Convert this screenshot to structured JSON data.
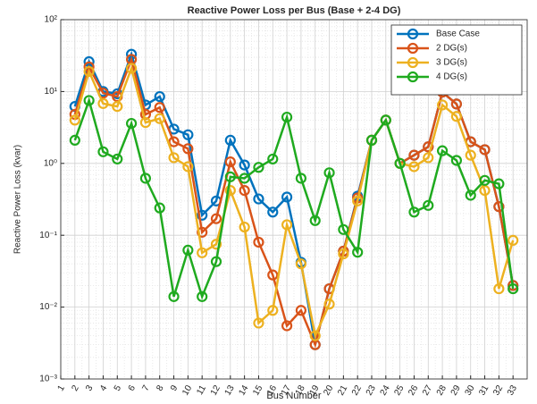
{
  "chart_data": {
    "type": "line",
    "title": "Reactive Power Loss per Bus (Base + 2-4 DG)",
    "xlabel": "Bus Number",
    "ylabel": "Reactive Power Loss (kvar)",
    "x": [
      2,
      3,
      4,
      5,
      6,
      7,
      8,
      9,
      10,
      11,
      12,
      13,
      14,
      15,
      16,
      17,
      18,
      19,
      20,
      21,
      22,
      23,
      24,
      25,
      26,
      27,
      28,
      29,
      30,
      31,
      32,
      33
    ],
    "xlim": [
      1,
      34
    ],
    "xticks": [
      1,
      2,
      3,
      4,
      5,
      6,
      7,
      8,
      9,
      10,
      11,
      12,
      13,
      14,
      15,
      16,
      17,
      18,
      19,
      20,
      21,
      22,
      23,
      24,
      25,
      26,
      27,
      28,
      29,
      30,
      31,
      32,
      33
    ],
    "ylim": [
      0.001,
      100
    ],
    "yticks": [
      {
        "value": 0.001,
        "label": "10⁻³"
      },
      {
        "value": 0.01,
        "label": "10⁻²"
      },
      {
        "value": 0.1,
        "label": "10⁻¹"
      },
      {
        "value": 1,
        "label": "10⁰"
      },
      {
        "value": 10,
        "label": "10¹"
      },
      {
        "value": 100,
        "label": "10²"
      }
    ],
    "log_y": true,
    "grid": true,
    "minor_grid": true,
    "legend": "top-right",
    "series": [
      {
        "name": "Base Case",
        "color": "#0072BD",
        "values": [
          6.2,
          26,
          10,
          9.3,
          33,
          6.5,
          8.5,
          3.0,
          2.5,
          0.19,
          0.3,
          2.1,
          0.95,
          0.32,
          0.21,
          0.34,
          0.042,
          0.003,
          0.018,
          0.06,
          0.35,
          2.1,
          4.0,
          1.0,
          1.3,
          1.7,
          9.8,
          6.7,
          2.0,
          1.55,
          0.25,
          0.02
        ]
      },
      {
        "name": "2 DG(s)",
        "color": "#D95319",
        "values": [
          4.8,
          22,
          9.5,
          8.5,
          28,
          4.8,
          6,
          2.0,
          1.6,
          0.11,
          0.17,
          1.05,
          0.42,
          0.08,
          0.028,
          0.0055,
          0.009,
          0.003,
          0.018,
          0.06,
          0.33,
          2.1,
          4.0,
          1.0,
          1.3,
          1.7,
          9.8,
          6.7,
          2.0,
          1.55,
          0.25,
          0.02
        ]
      },
      {
        "name": "3 DG(s)",
        "color": "#EDB120",
        "values": [
          4.0,
          19,
          6.8,
          6.2,
          21,
          3.7,
          4.2,
          1.2,
          0.9,
          0.057,
          0.075,
          0.42,
          0.13,
          0.006,
          0.009,
          0.14,
          0.04,
          0.004,
          0.011,
          0.055,
          0.3,
          2.1,
          4.0,
          1.0,
          0.9,
          1.2,
          6.5,
          4.5,
          1.3,
          0.42,
          0.018,
          0.085
        ]
      },
      {
        "name": "4 DG(s)",
        "color": "#1FAA1F",
        "values": [
          2.1,
          7.5,
          1.45,
          1.15,
          3.6,
          0.62,
          0.24,
          0.014,
          0.062,
          0.014,
          0.043,
          0.65,
          0.62,
          0.88,
          1.15,
          4.4,
          0.62,
          0.16,
          0.74,
          0.12,
          0.058,
          2.1,
          4.0,
          1.0,
          0.21,
          0.26,
          1.5,
          1.1,
          0.36,
          0.58,
          0.52,
          0.018
        ]
      }
    ]
  }
}
